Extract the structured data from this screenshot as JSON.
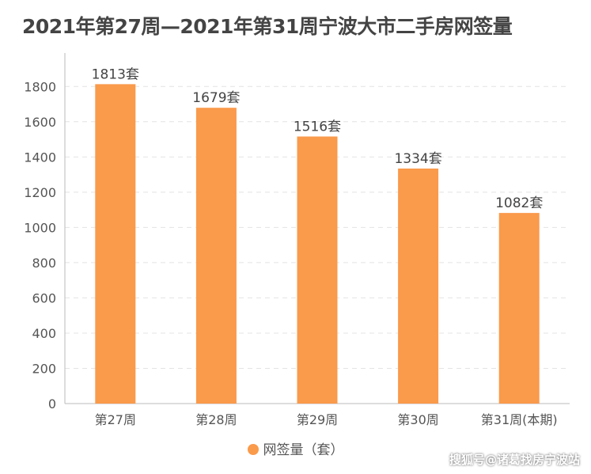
{
  "chart_data": {
    "type": "bar",
    "title": "2021年第27周—2021年第31周宁波大市二手房网签量",
    "categories": [
      "第27周",
      "第28周",
      "第29周",
      "第30周",
      "第31周(本期)"
    ],
    "series": [
      {
        "name": "网签量（套）",
        "values": [
          1813,
          1679,
          1516,
          1334,
          1082
        ],
        "labels": [
          "1813套",
          "1679套",
          "1516套",
          "1334套",
          "1082套"
        ]
      }
    ],
    "yticks": [
      "0",
      "200",
      "400",
      "600",
      "800",
      "1000",
      "1200",
      "1400",
      "1600",
      "1800"
    ],
    "ylim": [
      0,
      1900
    ],
    "grid": true,
    "legend": "bottom",
    "bar_color": "#fa9a4b",
    "grid_color": "#e4e4e4",
    "axis_color": "#bbbbbb"
  },
  "watermark": "搜狐号@诸葛找房宁波站"
}
